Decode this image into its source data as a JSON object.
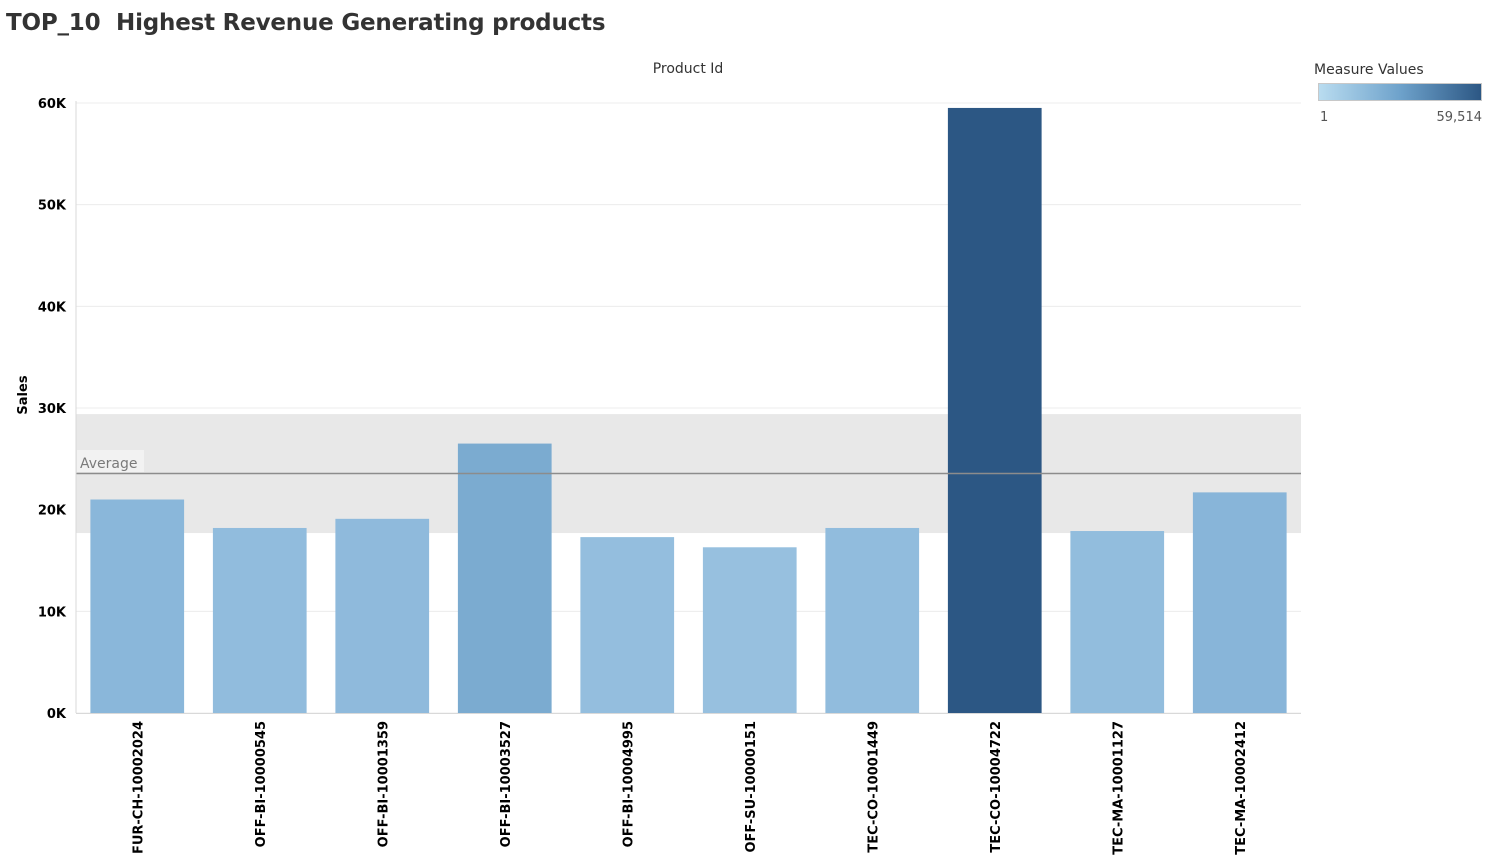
{
  "title": "TOP_10  Highest Revenue Generating products",
  "legend": {
    "title": "Measure Values",
    "min_label": "1",
    "max_label": "59,514",
    "min": 1,
    "max": 59514,
    "color_low": "#b9dcf0",
    "color_high": "#2c5784"
  },
  "chart_data": {
    "type": "bar",
    "title": "TOP_10  Highest Revenue Generating products",
    "xlabel": "Product Id",
    "ylabel": "Sales",
    "ylim": [
      0,
      60000
    ],
    "yticks": [
      {
        "value": 0,
        "label": "0K"
      },
      {
        "value": 10000,
        "label": "10K"
      },
      {
        "value": 20000,
        "label": "20K"
      },
      {
        "value": 30000,
        "label": "30K"
      },
      {
        "value": 40000,
        "label": "40K"
      },
      {
        "value": 50000,
        "label": "50K"
      },
      {
        "value": 60000,
        "label": "60K"
      }
    ],
    "categories": [
      "FUR-CH-10002024",
      "OFF-BI-10000545",
      "OFF-BI-10001359",
      "OFF-BI-10003527",
      "OFF-BI-10004995",
      "OFF-SU-10000151",
      "TEC-CO-10001449",
      "TEC-CO-10004722",
      "TEC-MA-10001127",
      "TEC-MA-10002412"
    ],
    "values": [
      21000,
      18200,
      19100,
      26500,
      17300,
      16300,
      18200,
      59514,
      17900,
      21700
    ],
    "reference_line": {
      "label": "Average",
      "value": 23560
    },
    "reference_band": [
      17700,
      29400
    ],
    "grid": true
  }
}
